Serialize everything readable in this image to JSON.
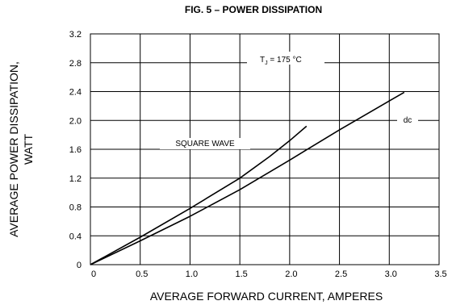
{
  "chart_data": {
    "type": "line",
    "title": "FIG. 5 – POWER DISSIPATION",
    "xlabel": "AVERAGE FORWARD CURRENT, AMPERES",
    "ylabel_line1": "AVERAGE POWER DISSIPATION,",
    "ylabel_line2": "WATT",
    "xlim": [
      0,
      3.5
    ],
    "ylim": [
      0,
      3.2
    ],
    "x_ticks": [
      0,
      0.5,
      1.0,
      1.5,
      2.0,
      2.5,
      3.0,
      3.5
    ],
    "x_tick_labels": [
      "0",
      "0.5",
      "1.0",
      "1.5",
      "2.0",
      "2.5",
      "3.0",
      "3.5"
    ],
    "y_ticks": [
      0,
      0.4,
      0.8,
      1.2,
      1.6,
      2.0,
      2.4,
      2.8,
      3.2
    ],
    "y_tick_labels": [
      "0",
      "0.4",
      "0.8",
      "1.2",
      "1.6",
      "2.0",
      "2.4",
      "2.8",
      "3.2"
    ],
    "grid": true,
    "series": [
      {
        "name": "SQUARE WAVE",
        "x": [
          0,
          0.5,
          1.0,
          1.5,
          1.8,
          2.0,
          2.17
        ],
        "y": [
          0,
          0.38,
          0.78,
          1.2,
          1.5,
          1.72,
          1.92
        ]
      },
      {
        "name": "dc",
        "x": [
          0,
          0.5,
          1.0,
          1.5,
          2.0,
          2.5,
          3.0,
          3.15
        ],
        "y": [
          0,
          0.33,
          0.67,
          1.04,
          1.45,
          1.87,
          2.27,
          2.39
        ]
      }
    ],
    "annotations": [
      {
        "text_main": "T",
        "text_sub": "J",
        "text_rest": " = 175 °C"
      }
    ]
  }
}
